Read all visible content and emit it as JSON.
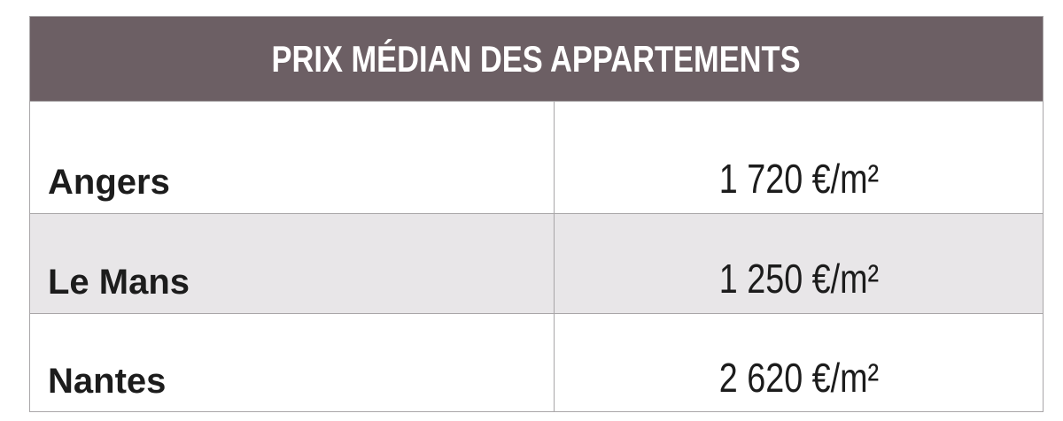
{
  "table": {
    "title": "PRIX MÉDIAN DES APPARTEMENTS",
    "rows": [
      [
        "Angers",
        "1 720 €/m²"
      ],
      [
        "Le Mans",
        "1 250 €/m²"
      ],
      [
        "Nantes",
        "2 620 €/m²"
      ]
    ]
  }
}
